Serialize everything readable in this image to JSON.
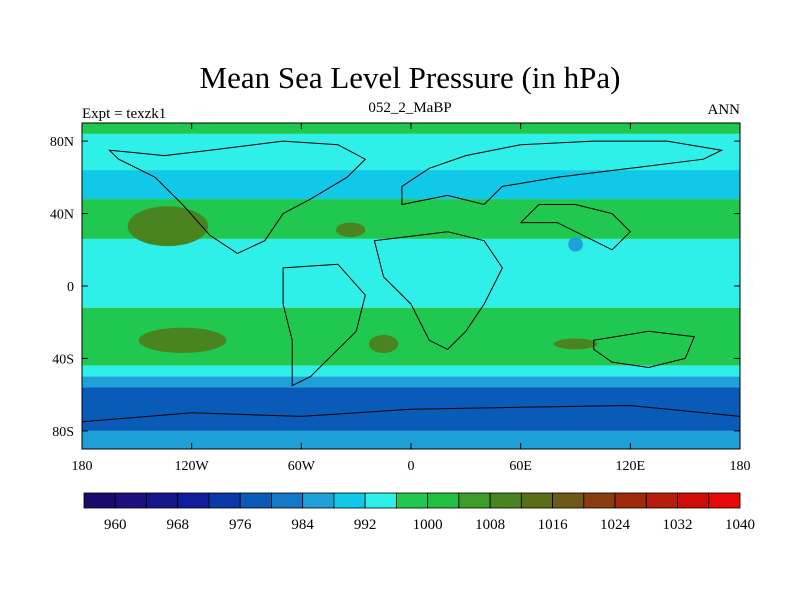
{
  "chart_data": {
    "type": "heatmap",
    "title": "Mean Sea Level Pressure (in hPa)",
    "left_label": "Expt = texzk1",
    "center_label": "052_2_MaBP",
    "right_label": "ANN",
    "x_ticks": [
      {
        "value": -180,
        "label": "180"
      },
      {
        "value": -120,
        "label": "120W"
      },
      {
        "value": -60,
        "label": "60W"
      },
      {
        "value": 0,
        "label": "0"
      },
      {
        "value": 60,
        "label": "60E"
      },
      {
        "value": 120,
        "label": "120E"
      },
      {
        "value": 180,
        "label": "180"
      }
    ],
    "y_ticks": [
      {
        "value": 80,
        "label": "80N"
      },
      {
        "value": 40,
        "label": "40N"
      },
      {
        "value": 0,
        "label": "0"
      },
      {
        "value": -40,
        "label": "40S"
      },
      {
        "value": -80,
        "label": "80S"
      }
    ],
    "xlim": [
      -180,
      180
    ],
    "ylim": [
      -90,
      90
    ],
    "colorbar": {
      "colors": [
        "#1a0a6e",
        "#1c107e",
        "#16158c",
        "#101c9c",
        "#0a3aa8",
        "#0a5ab8",
        "#1478c8",
        "#1ea0d8",
        "#10c8e8",
        "#2ef0e8",
        "#20c850",
        "#20c040",
        "#3c9c28",
        "#4a8420",
        "#5a6e18",
        "#6e5a14",
        "#8a3c10",
        "#a02a0c",
        "#b81c0a",
        "#d00c08",
        "#e80a08"
      ],
      "labels": [
        "960",
        "968",
        "976",
        "984",
        "992",
        "1000",
        "1008",
        "1016",
        "1024",
        "1032",
        "1040"
      ]
    },
    "zonal_bands": [
      {
        "lat_top": 90,
        "lat_bottom": 84,
        "color": "#20c850"
      },
      {
        "lat_top": 84,
        "lat_bottom": 64,
        "color": "#2ef0e8"
      },
      {
        "lat_top": 64,
        "lat_bottom": 48,
        "color": "#10c8e8"
      },
      {
        "lat_top": 48,
        "lat_bottom": 26,
        "color": "#20c850"
      },
      {
        "lat_top": 26,
        "lat_bottom": -12,
        "color": "#2ef0e8"
      },
      {
        "lat_top": -12,
        "lat_bottom": -44,
        "color": "#20c850"
      },
      {
        "lat_top": -44,
        "lat_bottom": -50,
        "color": "#2ef0e8"
      },
      {
        "lat_top": -50,
        "lat_bottom": -56,
        "color": "#1ea0d8"
      },
      {
        "lat_top": -56,
        "lat_bottom": -80,
        "color": "#0a5ab8"
      },
      {
        "lat_top": -80,
        "lat_bottom": -90,
        "color": "#1ea0d8"
      }
    ],
    "high_cells": [
      {
        "lon": -133,
        "lat": 33,
        "rlon": 22,
        "rlat": 11,
        "color": "#4a8420"
      },
      {
        "lon": -33,
        "lat": 31,
        "rlon": 8,
        "rlat": 4,
        "color": "#4a8420"
      },
      {
        "lon": -125,
        "lat": -30,
        "rlon": 24,
        "rlat": 7,
        "color": "#4a8420"
      },
      {
        "lon": -15,
        "lat": -32,
        "rlon": 8,
        "rlat": 5,
        "color": "#4a8420"
      },
      {
        "lon": 90,
        "lat": -32,
        "rlon": 12,
        "rlat": 3,
        "color": "#4a8420"
      }
    ],
    "low_cells": [
      {
        "lon": 90,
        "lat": 23,
        "rlon": 4,
        "rlat": 4,
        "color": "#1ea0d8"
      }
    ],
    "continents": [
      [
        [
          -110,
          75
        ],
        [
          -70,
          80
        ],
        [
          -40,
          78
        ],
        [
          -25,
          70
        ],
        [
          -35,
          60
        ],
        [
          -55,
          48
        ],
        [
          -70,
          40
        ],
        [
          -80,
          25
        ],
        [
          -95,
          18
        ],
        [
          -110,
          28
        ],
        [
          -125,
          45
        ],
        [
          -140,
          60
        ],
        [
          -160,
          70
        ],
        [
          -165,
          75
        ],
        [
          -135,
          72
        ]
      ],
      [
        [
          -70,
          10
        ],
        [
          -40,
          12
        ],
        [
          -25,
          -5
        ],
        [
          -30,
          -25
        ],
        [
          -45,
          -40
        ],
        [
          -55,
          -50
        ],
        [
          -65,
          -55
        ],
        [
          -65,
          -30
        ],
        [
          -70,
          -10
        ]
      ],
      [
        [
          -20,
          25
        ],
        [
          20,
          30
        ],
        [
          40,
          25
        ],
        [
          50,
          10
        ],
        [
          40,
          -10
        ],
        [
          30,
          -25
        ],
        [
          20,
          -35
        ],
        [
          10,
          -30
        ],
        [
          0,
          -10
        ],
        [
          -15,
          5
        ]
      ],
      [
        [
          -5,
          45
        ],
        [
          20,
          50
        ],
        [
          40,
          45
        ],
        [
          50,
          55
        ],
        [
          80,
          60
        ],
        [
          120,
          65
        ],
        [
          160,
          70
        ],
        [
          170,
          75
        ],
        [
          140,
          80
        ],
        [
          100,
          80
        ],
        [
          60,
          78
        ],
        [
          30,
          72
        ],
        [
          10,
          65
        ],
        [
          -5,
          55
        ]
      ],
      [
        [
          60,
          35
        ],
        [
          80,
          35
        ],
        [
          100,
          25
        ],
        [
          110,
          20
        ],
        [
          120,
          30
        ],
        [
          110,
          40
        ],
        [
          90,
          45
        ],
        [
          70,
          45
        ]
      ],
      [
        [
          100,
          -30
        ],
        [
          130,
          -25
        ],
        [
          155,
          -28
        ],
        [
          150,
          -40
        ],
        [
          130,
          -45
        ],
        [
          110,
          -42
        ],
        [
          100,
          -35
        ]
      ],
      [
        [
          -180,
          -75
        ],
        [
          -120,
          -70
        ],
        [
          -60,
          -72
        ],
        [
          0,
          -68
        ],
        [
          60,
          -67
        ],
        [
          120,
          -66
        ],
        [
          180,
          -72
        ],
        [
          180,
          -90
        ],
        [
          -180,
          -90
        ]
      ]
    ]
  }
}
